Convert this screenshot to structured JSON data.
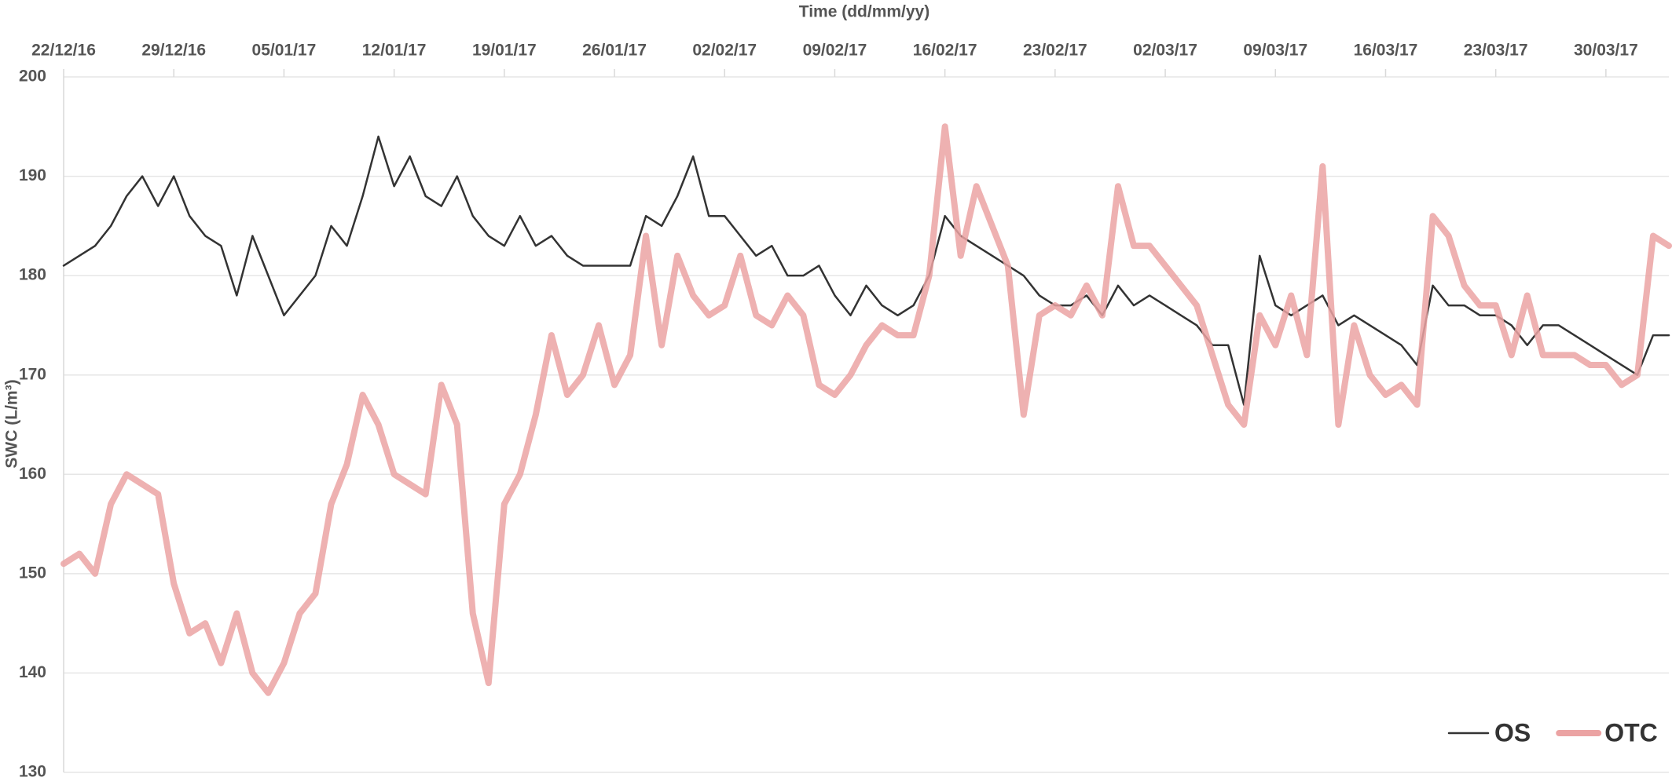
{
  "chart_data": {
    "type": "line",
    "x_label": "Time (dd/mm/yy)",
    "y_label": "SWC (L/m³)",
    "x": [
      "2016-12-22",
      "2016-12-23",
      "2016-12-24",
      "2016-12-25",
      "2016-12-26",
      "2016-12-27",
      "2016-12-28",
      "2016-12-29",
      "2016-12-30",
      "2016-12-31",
      "2017-01-01",
      "2017-01-02",
      "2017-01-03",
      "2017-01-04",
      "2017-01-05",
      "2017-01-06",
      "2017-01-07",
      "2017-01-08",
      "2017-01-09",
      "2017-01-10",
      "2017-01-11",
      "2017-01-12",
      "2017-01-13",
      "2017-01-14",
      "2017-01-15",
      "2017-01-16",
      "2017-01-17",
      "2017-01-18",
      "2017-01-19",
      "2017-01-20",
      "2017-01-21",
      "2017-01-22",
      "2017-01-23",
      "2017-01-24",
      "2017-01-25",
      "2017-01-26",
      "2017-01-27",
      "2017-01-28",
      "2017-01-29",
      "2017-01-30",
      "2017-01-31",
      "2017-02-01",
      "2017-02-02",
      "2017-02-03",
      "2017-02-04",
      "2017-02-05",
      "2017-02-06",
      "2017-02-07",
      "2017-02-08",
      "2017-02-09",
      "2017-02-10",
      "2017-02-11",
      "2017-02-12",
      "2017-02-13",
      "2017-02-14",
      "2017-02-15",
      "2017-02-16",
      "2017-02-17",
      "2017-02-18",
      "2017-02-19",
      "2017-02-20",
      "2017-02-21",
      "2017-02-22",
      "2017-02-23",
      "2017-02-24",
      "2017-02-25",
      "2017-02-26",
      "2017-02-27",
      "2017-02-28",
      "2017-03-01",
      "2017-03-02",
      "2017-03-03",
      "2017-03-04",
      "2017-03-05",
      "2017-03-06",
      "2017-03-07",
      "2017-03-08",
      "2017-03-09",
      "2017-03-10",
      "2017-03-11",
      "2017-03-12",
      "2017-03-13",
      "2017-03-14",
      "2017-03-15",
      "2017-03-16",
      "2017-03-17",
      "2017-03-18",
      "2017-03-19",
      "2017-03-20",
      "2017-03-21",
      "2017-03-22",
      "2017-03-23",
      "2017-03-24",
      "2017-03-25",
      "2017-03-26",
      "2017-03-27",
      "2017-03-28",
      "2017-03-29",
      "2017-03-30",
      "2017-03-31",
      "2017-04-01",
      "2017-04-02",
      "2017-04-03"
    ],
    "series": [
      {
        "name": "OS",
        "color": "#333333",
        "values": [
          181,
          182,
          183,
          185,
          188,
          190,
          187,
          190,
          186,
          184,
          183,
          178,
          184,
          180,
          176,
          178,
          180,
          185,
          183,
          188,
          194,
          189,
          192,
          188,
          187,
          190,
          186,
          184,
          183,
          186,
          183,
          184,
          182,
          181,
          181,
          181,
          181,
          186,
          185,
          188,
          192,
          186,
          186,
          184,
          182,
          183,
          180,
          180,
          181,
          178,
          176,
          179,
          177,
          176,
          177,
          180,
          186,
          184,
          183,
          182,
          181,
          180,
          178,
          177,
          177,
          178,
          176,
          179,
          177,
          178,
          177,
          176,
          175,
          173,
          173,
          167,
          182,
          177,
          176,
          177,
          178,
          175,
          176,
          175,
          174,
          173,
          171,
          179,
          177,
          177,
          176,
          176,
          175,
          173,
          175,
          175,
          174,
          173,
          172,
          171,
          170,
          174,
          174
        ]
      },
      {
        "name": "OTC",
        "color": "#eba3a3",
        "values": [
          151,
          152,
          150,
          157,
          160,
          159,
          158,
          149,
          144,
          145,
          141,
          146,
          140,
          138,
          141,
          146,
          148,
          157,
          161,
          168,
          165,
          160,
          159,
          158,
          169,
          165,
          146,
          139,
          157,
          160,
          166,
          174,
          168,
          170,
          175,
          169,
          172,
          184,
          173,
          182,
          178,
          176,
          177,
          182,
          176,
          175,
          178,
          176,
          169,
          168,
          170,
          173,
          175,
          174,
          174,
          180,
          195,
          182,
          189,
          185,
          181,
          166,
          176,
          177,
          176,
          179,
          176,
          189,
          183,
          183,
          181,
          179,
          177,
          172,
          167,
          165,
          176,
          173,
          178,
          172,
          191,
          165,
          175,
          170,
          168,
          169,
          167,
          186,
          184,
          179,
          177,
          177,
          172,
          178,
          172,
          172,
          172,
          171,
          171,
          169,
          170,
          184,
          183
        ]
      }
    ],
    "xlim": [
      "2016-12-22",
      "2017-04-03"
    ],
    "xticks": [
      {
        "value": "2016-12-22",
        "label": "22/12/16"
      },
      {
        "value": "2016-12-29",
        "label": "29/12/16"
      },
      {
        "value": "2017-01-05",
        "label": "05/01/17"
      },
      {
        "value": "2017-01-12",
        "label": "12/01/17"
      },
      {
        "value": "2017-01-19",
        "label": "19/01/17"
      },
      {
        "value": "2017-01-26",
        "label": "26/01/17"
      },
      {
        "value": "2017-02-02",
        "label": "02/02/17"
      },
      {
        "value": "2017-02-09",
        "label": "09/02/17"
      },
      {
        "value": "2017-02-16",
        "label": "16/02/17"
      },
      {
        "value": "2017-02-23",
        "label": "23/02/17"
      },
      {
        "value": "2017-03-02",
        "label": "02/03/17"
      },
      {
        "value": "2017-03-09",
        "label": "09/03/17"
      },
      {
        "value": "2017-03-16",
        "label": "16/03/17"
      },
      {
        "value": "2017-03-23",
        "label": "23/03/17"
      },
      {
        "value": "2017-03-30",
        "label": "30/03/17"
      }
    ],
    "ylim": [
      130,
      200
    ],
    "yticks": [
      130,
      140,
      150,
      160,
      170,
      180,
      190,
      200
    ],
    "grid": true,
    "legend": "lower right"
  }
}
